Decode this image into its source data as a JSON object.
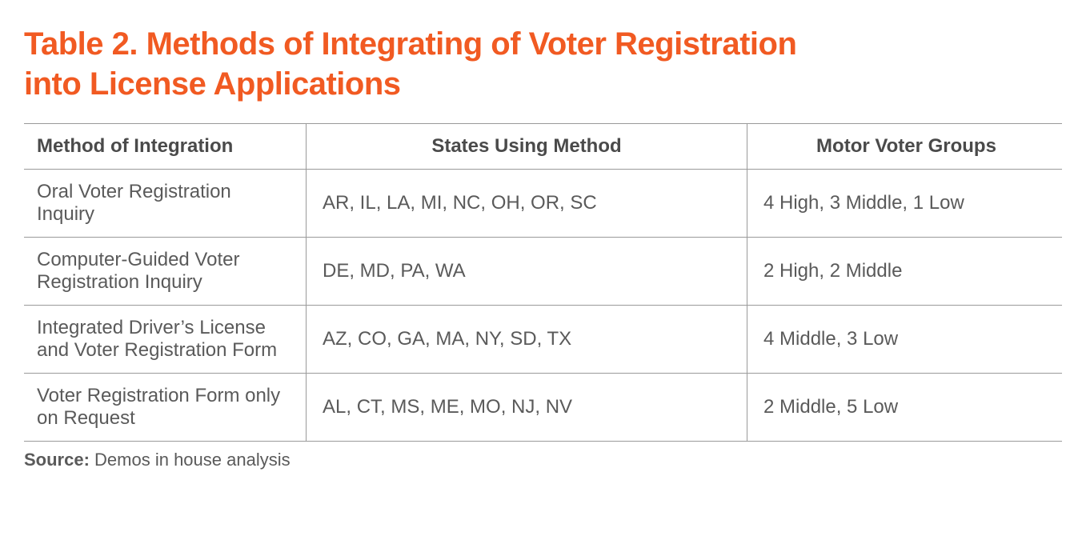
{
  "colors": {
    "title": "#f15a22",
    "text": "#5a5a5a",
    "header_text": "#4a4a4a",
    "border": "#9a9a9a",
    "background": "#ffffff"
  },
  "title_line1": "Table 2. Methods of Integrating of Voter Registration",
  "title_line2": "into License Applications",
  "table": {
    "columns": [
      "Method of Integration",
      "States Using Method",
      "Motor Voter Groups"
    ],
    "rows": [
      [
        "Oral Voter Registration Inquiry",
        "AR, IL, LA, MI, NC, OH, OR, SC",
        "4 High, 3 Middle, 1 Low"
      ],
      [
        "Computer-Guided Voter Registration Inquiry",
        "DE, MD, PA, WA",
        "2 High, 2 Middle"
      ],
      [
        "Integrated Driver’s License and Voter Registration Form",
        "AZ, CO, GA, MA, NY, SD, TX",
        "4 Middle, 3 Low"
      ],
      [
        "Voter Registration Form only on Request",
        "AL, CT, MS, ME, MO, NJ, NV",
        "2 Middle, 5 Low"
      ]
    ]
  },
  "source_label": "Source:",
  "source_text": " Demos in house analysis"
}
